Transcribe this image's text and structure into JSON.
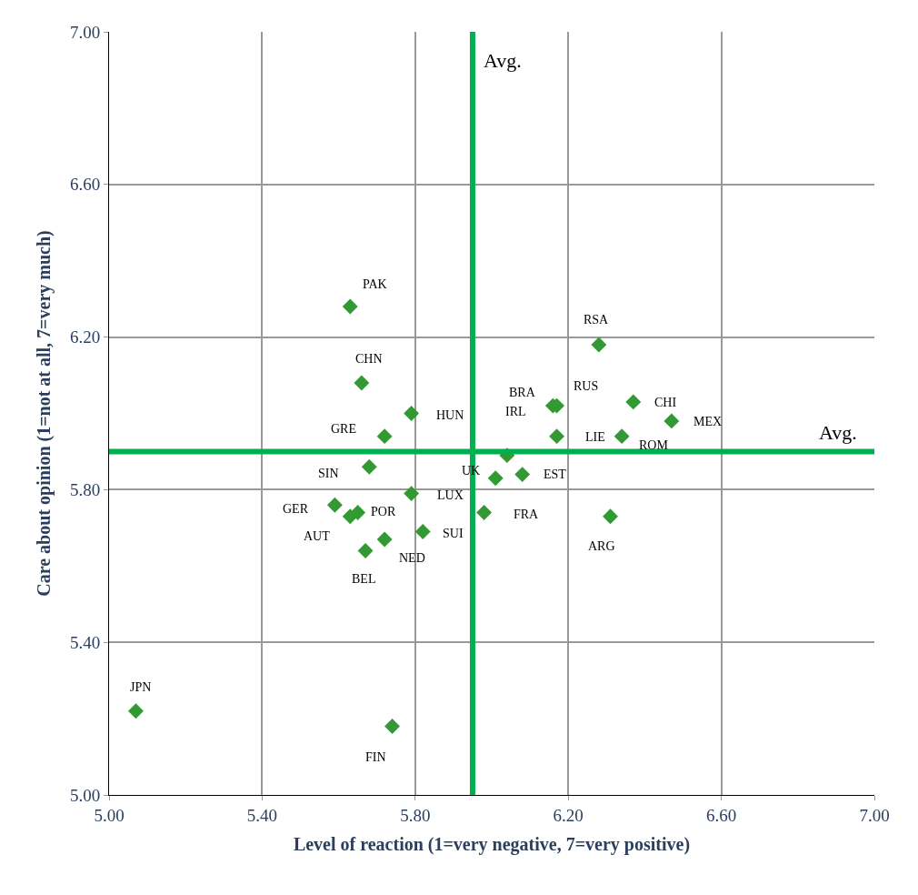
{
  "chart_data": {
    "type": "scatter",
    "xlabel": "Level of reaction (1=very negative, 7=very positive)",
    "ylabel": "Care about opinion (1=not at all, 7=very much)",
    "x": [
      5.63,
      5.66,
      5.79,
      5.72,
      5.68,
      5.79,
      5.59,
      5.63,
      5.65,
      5.82,
      5.72,
      5.67,
      5.07,
      5.74,
      5.98,
      6.01,
      6.08,
      6.04,
      6.17,
      6.16,
      6.17,
      6.28,
      6.37,
      6.47,
      6.34,
      6.31
    ],
    "series": [
      {
        "color": "#339933",
        "values": [
          6.28,
          6.08,
          6.0,
          5.94,
          5.86,
          5.79,
          5.76,
          5.73,
          5.74,
          5.69,
          5.67,
          5.64,
          5.22,
          5.18,
          5.74,
          5.83,
          5.84,
          5.89,
          5.94,
          6.02,
          6.02,
          6.18,
          6.03,
          5.98,
          5.94,
          5.73
        ]
      }
    ],
    "annotations": [
      {
        "text": "PAK",
        "x": 5.63,
        "y": 6.28
      },
      {
        "text": "CHN",
        "x": 5.66,
        "y": 6.08
      },
      {
        "text": "HUN",
        "x": 5.79,
        "y": 6.0
      },
      {
        "text": "GRE",
        "x": 5.72,
        "y": 5.94
      },
      {
        "text": "SIN",
        "x": 5.68,
        "y": 5.86
      },
      {
        "text": "LUX",
        "x": 5.79,
        "y": 5.79
      },
      {
        "text": "GER",
        "x": 5.59,
        "y": 5.76
      },
      {
        "text": "AUT",
        "x": 5.63,
        "y": 5.73
      },
      {
        "text": "POR",
        "x": 5.65,
        "y": 5.74
      },
      {
        "text": "SUI",
        "x": 5.82,
        "y": 5.69
      },
      {
        "text": "NED",
        "x": 5.72,
        "y": 5.67
      },
      {
        "text": "BEL",
        "x": 5.67,
        "y": 5.64
      },
      {
        "text": "JPN",
        "x": 5.07,
        "y": 5.22
      },
      {
        "text": "FIN",
        "x": 5.74,
        "y": 5.18
      },
      {
        "text": "FRA",
        "x": 5.98,
        "y": 5.74
      },
      {
        "text": "UK",
        "x": 6.01,
        "y": 5.83
      },
      {
        "text": "EST",
        "x": 6.08,
        "y": 5.84
      },
      {
        "text": "IRL",
        "x": 6.04,
        "y": 5.89
      },
      {
        "text": "LIE",
        "x": 6.17,
        "y": 5.94
      },
      {
        "text": "BRA",
        "x": 6.16,
        "y": 6.02
      },
      {
        "text": "RUS",
        "x": 6.17,
        "y": 6.02
      },
      {
        "text": "RSA",
        "x": 6.28,
        "y": 6.18
      },
      {
        "text": "CHI",
        "x": 6.37,
        "y": 6.03
      },
      {
        "text": "MEX",
        "x": 6.47,
        "y": 5.98
      },
      {
        "text": "ROM",
        "x": 6.34,
        "y": 5.94
      },
      {
        "text": "ARG",
        "x": 6.31,
        "y": 5.73
      }
    ],
    "ref_lines": [
      {
        "axis": "x",
        "value": 5.95,
        "label": "Avg.",
        "color": "#00b050"
      },
      {
        "axis": "y",
        "value": 5.9,
        "label": "Avg.",
        "color": "#00b050"
      }
    ],
    "xlim": [
      5.0,
      7.0
    ],
    "xticks": [
      {
        "value": 5.0,
        "label": "5.00"
      },
      {
        "value": 5.4,
        "label": "5.40"
      },
      {
        "value": 5.8,
        "label": "5.80"
      },
      {
        "value": 6.2,
        "label": "6.20"
      },
      {
        "value": 6.6,
        "label": "6.60"
      },
      {
        "value": 7.0,
        "label": "7.00"
      }
    ],
    "ylim": [
      5.0,
      7.0
    ],
    "yticks": [
      {
        "value": 5.0,
        "label": "5.00"
      },
      {
        "value": 5.4,
        "label": "5.40"
      },
      {
        "value": 5.8,
        "label": "5.80"
      },
      {
        "value": 6.2,
        "label": "6.20"
      },
      {
        "value": 6.6,
        "label": "6.60"
      },
      {
        "value": 7.0,
        "label": "7.00"
      }
    ],
    "grid": true,
    "marker": "diamond",
    "legend": false
  }
}
